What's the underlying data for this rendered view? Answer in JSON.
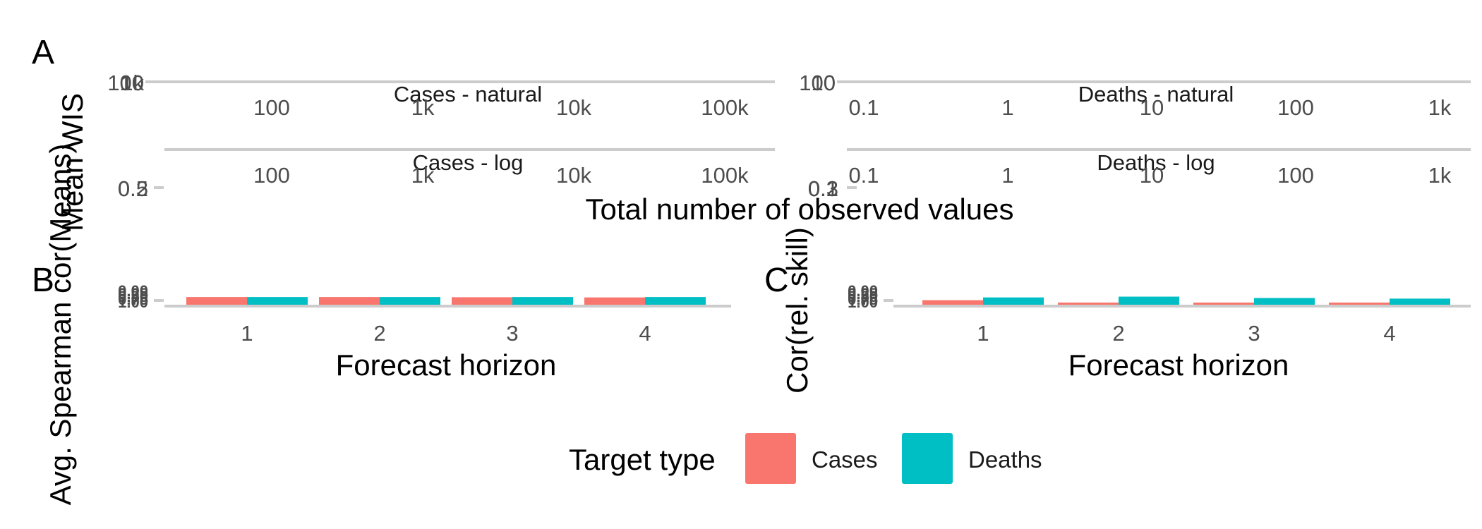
{
  "chart_data": [
    {
      "panel": "A",
      "type": "scatter",
      "xlabel": "Total number of observed values",
      "ylabel": "Mean WIS",
      "ylabel_overlap": "Avg. Spearman cor(Means)",
      "facets": [
        {
          "strip": "Cases - natural",
          "x_ticks": [
            "100",
            "1k",
            "10k",
            "100k"
          ],
          "y_ticks": [
            "1k",
            "10",
            "100"
          ]
        },
        {
          "strip": "Deaths - natural",
          "x_ticks": [
            "0.1",
            "1",
            "10",
            "100",
            "1k"
          ],
          "y_ticks": [
            "10",
            "100"
          ]
        },
        {
          "strip": "Cases - log",
          "x_ticks": [
            "100",
            "1k",
            "10k",
            "100k"
          ],
          "y_ticks": [
            "0.2",
            "0.5"
          ]
        },
        {
          "strip": "Deaths - log",
          "x_ticks": [
            "0.1",
            "1",
            "10",
            "100",
            "1k"
          ],
          "y_ticks": [
            "0.1",
            "0.2",
            "0.3"
          ]
        }
      ]
    },
    {
      "panel": "B",
      "type": "bar",
      "xlabel": "Forecast horizon",
      "ylabel": "Avg. Spearman cor(Means)",
      "categories": [
        "1",
        "2",
        "3",
        "4"
      ],
      "y_ticks": [
        "0.00",
        "0.25",
        "0.50",
        "0.75",
        "1.00"
      ],
      "ylim": [
        0,
        1
      ],
      "series": [
        {
          "name": "Cases",
          "values": [
            0.92,
            0.92,
            0.9,
            0.88
          ]
        },
        {
          "name": "Deaths",
          "values": [
            0.92,
            0.92,
            0.92,
            0.92
          ]
        }
      ]
    },
    {
      "panel": "C",
      "type": "bar",
      "xlabel": "Forecast horizon",
      "ylabel": "Cor(rel. skill)",
      "categories": [
        "1",
        "2",
        "3",
        "4"
      ],
      "y_ticks": [
        "0.00",
        "0.25",
        "0.50",
        "0.75",
        "1.00"
      ],
      "ylim": [
        0,
        1
      ],
      "series": [
        {
          "name": "Cases",
          "values": [
            0.6,
            0.36,
            0.36,
            0.36
          ]
        },
        {
          "name": "Deaths",
          "values": [
            0.88,
            0.96,
            0.82,
            0.76
          ]
        }
      ]
    }
  ],
  "legend": {
    "title": "Target type",
    "items": [
      {
        "label": "Cases",
        "color": "#F8766D"
      },
      {
        "label": "Deaths",
        "color": "#00BFC4"
      }
    ],
    "placement": "bottom"
  },
  "colors": {
    "cases": "#F8766D",
    "deaths": "#00BFC4",
    "axis": "#cccccc"
  }
}
